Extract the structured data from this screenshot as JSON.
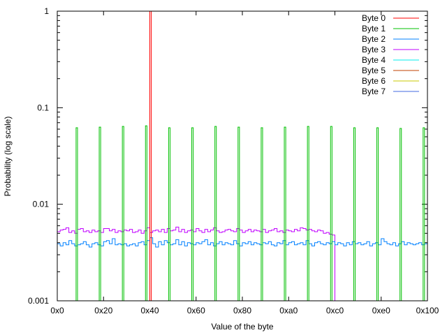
{
  "chart_data": {
    "type": "line",
    "style": "histogram-steps",
    "xlabel": "Value of the byte",
    "ylabel": "Probability (log scale)",
    "xlim": [
      0,
      256
    ],
    "ylim": [
      0.001,
      1
    ],
    "yscale": "log",
    "x_ticks": [
      {
        "value": 0,
        "label": "0x0"
      },
      {
        "value": 32,
        "label": "0x20"
      },
      {
        "value": 64,
        "label": "0x40"
      },
      {
        "value": 96,
        "label": "0x60"
      },
      {
        "value": 128,
        "label": "0x80"
      },
      {
        "value": 160,
        "label": "0xa0"
      },
      {
        "value": 192,
        "label": "0xc0"
      },
      {
        "value": 224,
        "label": "0xe0"
      },
      {
        "value": 256,
        "label": "0x100"
      }
    ],
    "y_ticks": [
      {
        "value": 1,
        "label": "1"
      },
      {
        "value": 0.1,
        "label": "0.1"
      },
      {
        "value": 0.01,
        "label": "0.01"
      },
      {
        "value": 0.001,
        "label": "0.001"
      }
    ],
    "legend_position": "top-right",
    "legend": [
      {
        "name": "Byte 0",
        "color": "#ff0000"
      },
      {
        "name": "Byte 1",
        "color": "#00c000"
      },
      {
        "name": "Byte 2",
        "color": "#0080ff"
      },
      {
        "name": "Byte 3",
        "color": "#c000ff"
      },
      {
        "name": "Byte 4",
        "color": "#00eeee"
      },
      {
        "name": "Byte 5",
        "color": "#c04000"
      },
      {
        "name": "Byte 6",
        "color": "#c8c800"
      },
      {
        "name": "Byte 7",
        "color": "#4169e1"
      }
    ],
    "series": [
      {
        "name": "Byte 3",
        "color": "#c000ff",
        "bin_width": 2,
        "values": [
          0.0052,
          0.0054,
          0.0055,
          0.0057,
          0.0051,
          0.0053,
          0.005,
          0.0055,
          0.0056,
          0.0052,
          0.0053,
          0.0051,
          0.0054,
          0.0052,
          0.0053,
          0.0051,
          0.0056,
          0.0056,
          0.0053,
          0.0055,
          0.0051,
          0.0053,
          0.0052,
          0.0054,
          0.0053,
          0.0055,
          0.0051,
          0.0052,
          0.0054,
          0.005,
          0.0053,
          0.0057,
          0.0051,
          0.0053,
          0.0054,
          0.0052,
          0.0055,
          0.0051,
          0.0056,
          0.0053,
          0.0054,
          0.0058,
          0.0052,
          0.0055,
          0.0051,
          0.0053,
          0.0054,
          0.0052,
          0.0056,
          0.0053,
          0.0051,
          0.0055,
          0.0052,
          0.0054,
          0.0057,
          0.0053,
          0.0051,
          0.0052,
          0.0054,
          0.0055,
          0.0053,
          0.0052,
          0.0056,
          0.0054,
          0.0051,
          0.0053,
          0.0055,
          0.0052,
          0.0054,
          0.0053,
          0.0052,
          0.0055,
          0.0051,
          0.0053,
          0.0054,
          0.0056,
          0.0052,
          0.0053,
          0.0051,
          0.0054,
          0.0053,
          0.0052,
          0.0055,
          0.0053,
          0.0057,
          0.0056,
          0.0054,
          0.0055,
          0.0053,
          0.0052,
          0.0054,
          0.0053,
          0.005,
          0.0051,
          0.0049,
          0.0048,
          0,
          0,
          0,
          0,
          0,
          0,
          0,
          0,
          0,
          0,
          0,
          0,
          0,
          0,
          0,
          0,
          0,
          0,
          0,
          0,
          0,
          0,
          0,
          0,
          0,
          0,
          0,
          0,
          0,
          0,
          0,
          0
        ]
      },
      {
        "name": "Byte 2",
        "color": "#0080ff",
        "bin_width": 2,
        "values": [
          0.0039,
          0.0037,
          0.004,
          0.0038,
          0.0042,
          0.0039,
          0.0037,
          0.0038,
          0.0039,
          0.0041,
          0.0038,
          0.0036,
          0.0039,
          0.004,
          0.0038,
          0.0037,
          0.0041,
          0.0042,
          0.0039,
          0.0044,
          0.0038,
          0.0039,
          0.0038,
          0.0039,
          0.0037,
          0.0038,
          0.0039,
          0.0037,
          0.004,
          0.0041,
          0.0038,
          0.0042,
          0.0045,
          0.0039,
          0.0036,
          0.0041,
          0.0038,
          0.0042,
          0.004,
          0.0038,
          0.0039,
          0.0043,
          0.0038,
          0.0041,
          0.0037,
          0.004,
          0.0039,
          0.0038,
          0.004,
          0.0039,
          0.0041,
          0.0043,
          0.0038,
          0.004,
          0.0037,
          0.0039,
          0.0041,
          0.0038,
          0.004,
          0.0039,
          0.0038,
          0.0042,
          0.0039,
          0.0037,
          0.004,
          0.0039,
          0.0041,
          0.0038,
          0.004,
          0.0039,
          0.0038,
          0.004,
          0.0039,
          0.0041,
          0.0038,
          0.0037,
          0.004,
          0.0039,
          0.0042,
          0.0038,
          0.004,
          0.0041,
          0.0038,
          0.0039,
          0.004,
          0.0038,
          0.0042,
          0.0039,
          0.0037,
          0.004,
          0.0041,
          0.0039,
          0.0038,
          0.004,
          0.0039,
          0.0041,
          0.0038,
          0.004,
          0.0039,
          0.0037,
          0.004,
          0.0038,
          0.0041,
          0.0039,
          0.004,
          0.0038,
          0.0039,
          0.0041,
          0.0037,
          0.0039,
          0.004,
          0.0038,
          0.0044,
          0.0041,
          0.0039,
          0.0038,
          0.004,
          0.0037,
          0.0039,
          0.0041,
          0.0038,
          0.004,
          0.0039,
          0.0038,
          0.0039,
          0.004,
          0.0038,
          0.0039
        ]
      },
      {
        "name": "Byte 1",
        "color": "#00c000",
        "type": "spikes",
        "bin_width": 1,
        "x": [
          13,
          29,
          45,
          61,
          77,
          93,
          109,
          125,
          141,
          157,
          173,
          189,
          205,
          221,
          237,
          253
        ],
        "values": [
          0.062,
          0.063,
          0.064,
          0.065,
          0.062,
          0.062,
          0.064,
          0.063,
          0.062,
          0.063,
          0.064,
          0.064,
          0.062,
          0.062,
          0.061,
          0.062
        ]
      },
      {
        "name": "Byte 0",
        "color": "#ff0000",
        "type": "spikes",
        "bin_width": 1,
        "x": [
          64
        ],
        "values": [
          1.0
        ]
      }
    ]
  }
}
